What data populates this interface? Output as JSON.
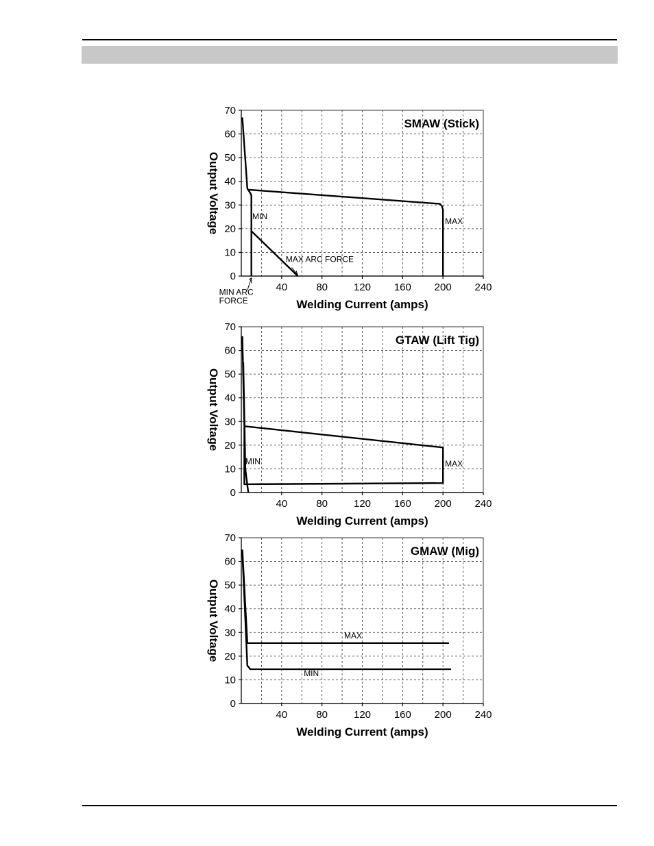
{
  "chart_data": [
    {
      "type": "line",
      "title": "SMAW (Stick)",
      "xlabel": "Welding Current (amps)",
      "ylabel": "Output Voltage",
      "xlim": [
        0,
        240
      ],
      "ylim": [
        0,
        70
      ],
      "xticks": [
        40,
        80,
        120,
        160,
        200,
        240
      ],
      "yticks": [
        0,
        10,
        20,
        30,
        40,
        50,
        60,
        70
      ],
      "grid": true,
      "series": [
        {
          "values": [
            [
              1,
              67
            ],
            [
              6,
              37
            ],
            [
              9,
              35
            ],
            [
              10,
              34
            ],
            [
              10,
              0
            ]
          ]
        },
        {
          "values": [
            [
              6,
              36.5
            ],
            [
              197,
              30.5
            ],
            [
              199,
              29.5
            ],
            [
              200,
              28
            ],
            [
              200,
              0
            ]
          ]
        },
        {
          "values": [
            [
              10,
              19
            ],
            [
              56,
              0
            ]
          ]
        }
      ],
      "annotations": [
        {
          "text": "MIN",
          "x": 11,
          "y": 24
        },
        {
          "text": "MAX",
          "x": 202,
          "y": 22
        },
        {
          "text": "MAX ARC FORCE",
          "x": 44,
          "y": 6
        },
        {
          "text": "MIN ARC",
          "x": -22,
          "y": -8
        },
        {
          "text": "FORCE",
          "x": -22,
          "y": -11.5
        }
      ]
    },
    {
      "type": "line",
      "title": "GTAW (Lift Tig)",
      "xlabel": "Welding Current (amps)",
      "ylabel": "Output Voltage",
      "xlim": [
        0,
        240
      ],
      "ylim": [
        0,
        70
      ],
      "xticks": [
        40,
        80,
        120,
        160,
        200,
        240
      ],
      "yticks": [
        0,
        10,
        20,
        30,
        40,
        50,
        60,
        70
      ],
      "grid": true,
      "series": [
        {
          "values": [
            [
              1,
              66
            ],
            [
              3,
              28
            ],
            [
              3,
              3.5
            ],
            [
              200,
              4
            ],
            [
              200,
              19
            ],
            [
              3,
              28
            ]
          ]
        },
        {
          "values": [
            [
              2,
              55
            ],
            [
              4,
              10
            ],
            [
              6,
              3
            ],
            [
              7,
              0
            ]
          ]
        }
      ],
      "annotations": [
        {
          "text": "MIN",
          "x": 4,
          "y": 12
        },
        {
          "text": "MAX",
          "x": 202,
          "y": 11
        }
      ]
    },
    {
      "type": "line",
      "title": "GMAW (Mig)",
      "xlabel": "Welding Current (amps)",
      "ylabel": "Output Voltage",
      "xlim": [
        0,
        240
      ],
      "ylim": [
        0,
        70
      ],
      "xticks": [
        40,
        80,
        120,
        160,
        200,
        240
      ],
      "yticks": [
        0,
        10,
        20,
        30,
        40,
        50,
        60,
        70
      ],
      "grid": true,
      "series": [
        {
          "name": "MAX",
          "values": [
            [
              1,
              65
            ],
            [
              6,
              25.5
            ],
            [
              206,
              25.5
            ]
          ]
        },
        {
          "name": "MIN",
          "values": [
            [
              1,
              64
            ],
            [
              6,
              16
            ],
            [
              9,
              14.5
            ],
            [
              208,
              14.5
            ]
          ]
        }
      ],
      "annotations": [
        {
          "text": "MAX",
          "x": 102,
          "y": 27.5
        },
        {
          "text": "MIN",
          "x": 62,
          "y": 11.5
        }
      ]
    }
  ]
}
